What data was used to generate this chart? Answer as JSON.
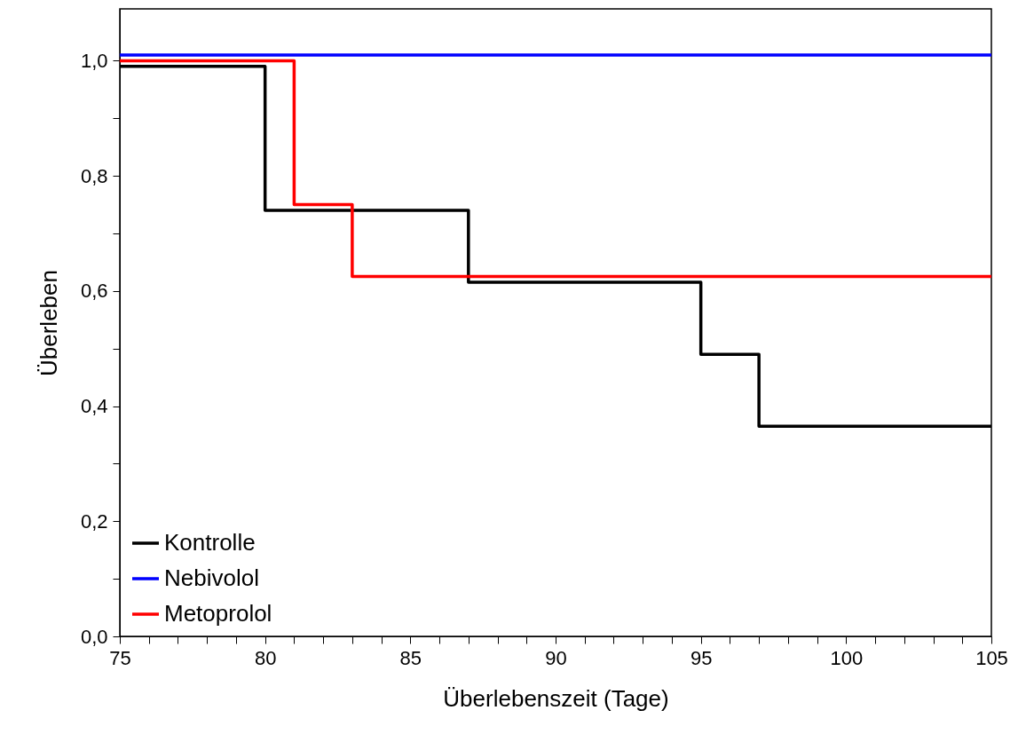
{
  "chart_data": {
    "type": "step",
    "xlabel": "Überlebenszeit (Tage)",
    "ylabel": "Überleben",
    "series": [
      {
        "name": "Kontrolle",
        "color": "#000000",
        "x": [
          75,
          80,
          87,
          95,
          97,
          105
        ],
        "values": [
          0.99,
          0.74,
          0.615,
          0.49,
          0.365,
          0.365
        ]
      },
      {
        "name": "Nebivolol",
        "color": "#0000ff",
        "x": [
          75,
          105
        ],
        "values": [
          1.01,
          1.01
        ]
      },
      {
        "name": "Metoprolol",
        "color": "#ff0000",
        "x": [
          75,
          81,
          83,
          105
        ],
        "values": [
          1.0,
          0.75,
          0.625,
          0.625
        ]
      }
    ],
    "xlim": [
      75,
      105
    ],
    "xticks": [
      75,
      {
        "value": 76,
        "label": null
      },
      {
        "value": 77,
        "label": null
      },
      {
        "value": 78,
        "label": null
      },
      {
        "value": 79,
        "label": null
      },
      80,
      {
        "value": 81,
        "label": null
      },
      {
        "value": 82,
        "label": null
      },
      {
        "value": 83,
        "label": null
      },
      {
        "value": 84,
        "label": null
      },
      85,
      {
        "value": 86,
        "label": null
      },
      {
        "value": 87,
        "label": null
      },
      {
        "value": 88,
        "label": null
      },
      {
        "value": 89,
        "label": null
      },
      90,
      {
        "value": 91,
        "label": null
      },
      {
        "value": 92,
        "label": null
      },
      {
        "value": 93,
        "label": null
      },
      {
        "value": 94,
        "label": null
      },
      95,
      {
        "value": 96,
        "label": null
      },
      {
        "value": 97,
        "label": null
      },
      {
        "value": 98,
        "label": null
      },
      {
        "value": 99,
        "label": null
      },
      100,
      {
        "value": 101,
        "label": null
      },
      {
        "value": 102,
        "label": null
      },
      {
        "value": 103,
        "label": null
      },
      {
        "value": 104,
        "label": null
      },
      105
    ],
    "ylim": [
      0,
      1.09
    ],
    "yticks": [
      {
        "value": 0,
        "label": "0,0"
      },
      {
        "value": 0.1,
        "label": null
      },
      {
        "value": 0.2,
        "label": "0,2"
      },
      {
        "value": 0.3,
        "label": null
      },
      {
        "value": 0.4,
        "label": "0,4"
      },
      {
        "value": 0.5,
        "label": null
      },
      {
        "value": 0.6,
        "label": "0,6"
      },
      {
        "value": 0.7,
        "label": null
      },
      {
        "value": 0.8,
        "label": "0,8"
      },
      {
        "value": 0.9,
        "label": null
      },
      {
        "value": 1.0,
        "label": "1,0"
      }
    ],
    "legend": "bottom left",
    "grid": false,
    "line_style": "solid"
  }
}
